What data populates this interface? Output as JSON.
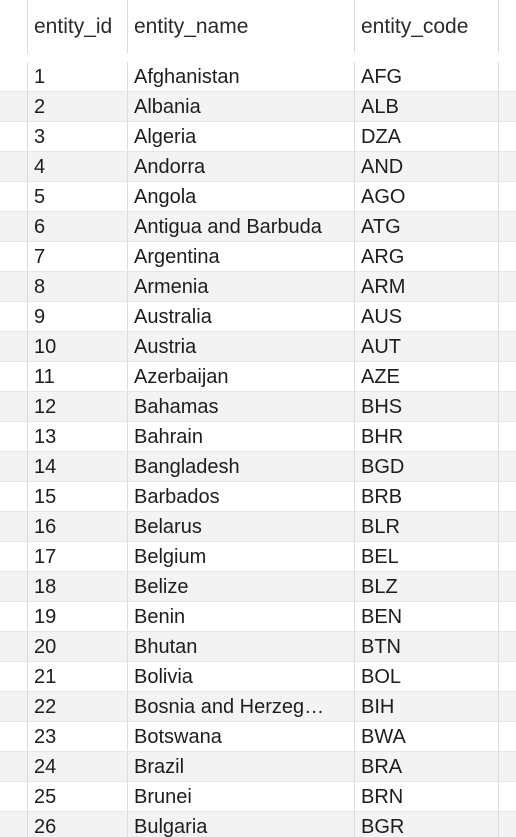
{
  "table": {
    "columns": [
      "entity_id",
      "entity_name",
      "entity_code"
    ],
    "rows": [
      [
        "1",
        "Afghanistan",
        "AFG"
      ],
      [
        "2",
        "Albania",
        "ALB"
      ],
      [
        "3",
        "Algeria",
        "DZA"
      ],
      [
        "4",
        "Andorra",
        "AND"
      ],
      [
        "5",
        "Angola",
        "AGO"
      ],
      [
        "6",
        "Antigua and Barbuda",
        "ATG"
      ],
      [
        "7",
        "Argentina",
        "ARG"
      ],
      [
        "8",
        "Armenia",
        "ARM"
      ],
      [
        "9",
        "Australia",
        "AUS"
      ],
      [
        "10",
        "Austria",
        "AUT"
      ],
      [
        "11",
        "Azerbaijan",
        "AZE"
      ],
      [
        "12",
        "Bahamas",
        "BHS"
      ],
      [
        "13",
        "Bahrain",
        "BHR"
      ],
      [
        "14",
        "Bangladesh",
        "BGD"
      ],
      [
        "15",
        "Barbados",
        "BRB"
      ],
      [
        "16",
        "Belarus",
        "BLR"
      ],
      [
        "17",
        "Belgium",
        "BEL"
      ],
      [
        "18",
        "Belize",
        "BLZ"
      ],
      [
        "19",
        "Benin",
        "BEN"
      ],
      [
        "20",
        "Bhutan",
        "BTN"
      ],
      [
        "21",
        "Bolivia",
        "BOL"
      ],
      [
        "22",
        "Bosnia and Herzeg…",
        "BIH"
      ],
      [
        "23",
        "Botswana",
        "BWA"
      ],
      [
        "24",
        "Brazil",
        "BRA"
      ],
      [
        "25",
        "Brunei",
        "BRN"
      ],
      [
        "26",
        "Bulgaria",
        "BGR"
      ]
    ]
  }
}
